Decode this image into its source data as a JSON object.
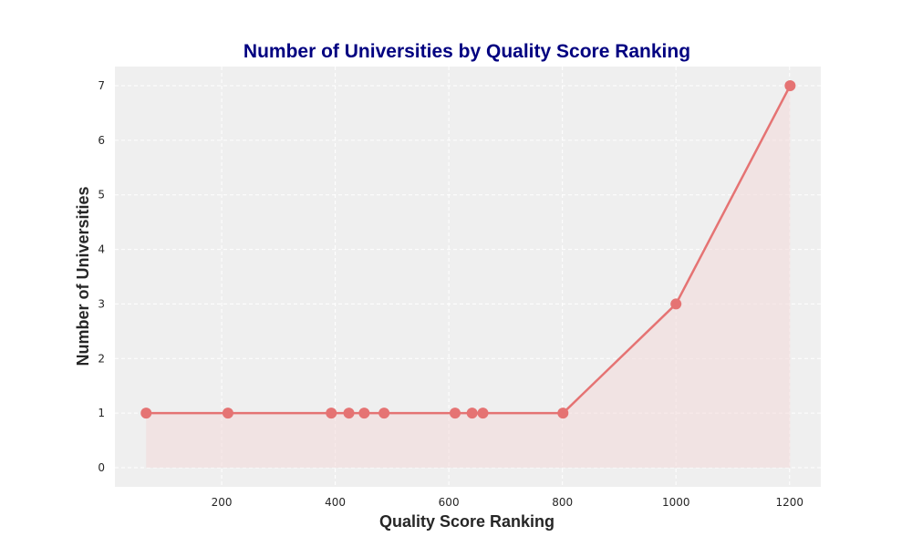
{
  "chart_data": {
    "type": "line",
    "title": "Number of Universities by Quality Score Ranking",
    "xlabel": "Quality Score Ranking",
    "ylabel": "Number of Universities",
    "x": [
      67,
      211,
      393,
      424,
      451,
      486,
      611,
      641,
      660,
      801,
      1000,
      1201
    ],
    "y": [
      1,
      1,
      1,
      1,
      1,
      1,
      1,
      1,
      1,
      1,
      3,
      7
    ],
    "xlim": [
      12,
      1255
    ],
    "ylim": [
      -0.35,
      7.35
    ],
    "xticks": [
      200,
      400,
      600,
      800,
      1000,
      1200
    ],
    "yticks": [
      0,
      1,
      2,
      3,
      4,
      5,
      6,
      7
    ],
    "grid": true,
    "area_fill": true,
    "colors": {
      "line": "#e57373",
      "fill": "#f2d9d9",
      "plot_background": "#efefef",
      "grid": "#ffffff",
      "title": "#000080"
    }
  }
}
